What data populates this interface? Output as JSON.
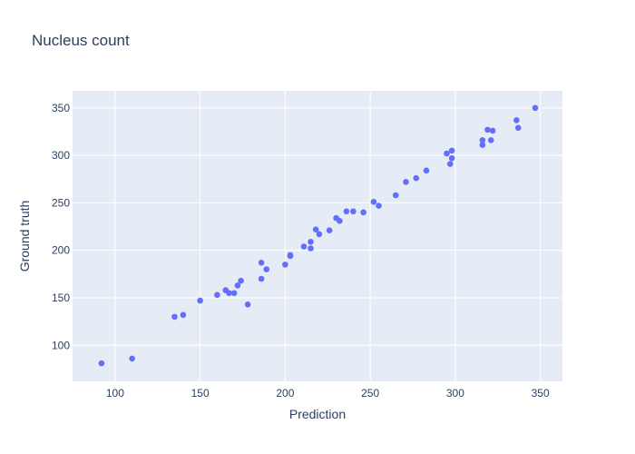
{
  "colors": {
    "plot_bg": "#e5ecf6",
    "grid": "#ffffff",
    "marker": "#636efa",
    "text": "#2a3f5f"
  },
  "chart_data": {
    "type": "scatter",
    "title": "Nucleus count",
    "xlabel": "Prediction",
    "ylabel": "Ground truth",
    "xlim": [
      75,
      363
    ],
    "ylim": [
      62,
      368
    ],
    "x_ticks": [
      100,
      150,
      200,
      250,
      300,
      350
    ],
    "y_ticks": [
      100,
      150,
      200,
      250,
      300,
      350
    ],
    "grid": true,
    "legend": false,
    "points": [
      {
        "x": 92,
        "y": 81
      },
      {
        "x": 110,
        "y": 86
      },
      {
        "x": 135,
        "y": 130
      },
      {
        "x": 140,
        "y": 132
      },
      {
        "x": 150,
        "y": 147
      },
      {
        "x": 160,
        "y": 153
      },
      {
        "x": 165,
        "y": 158
      },
      {
        "x": 167,
        "y": 155
      },
      {
        "x": 170,
        "y": 155
      },
      {
        "x": 172,
        "y": 163
      },
      {
        "x": 174,
        "y": 168
      },
      {
        "x": 178,
        "y": 143
      },
      {
        "x": 186,
        "y": 187
      },
      {
        "x": 186,
        "y": 170
      },
      {
        "x": 189,
        "y": 180
      },
      {
        "x": 200,
        "y": 185
      },
      {
        "x": 203,
        "y": 195
      },
      {
        "x": 203,
        "y": 194
      },
      {
        "x": 211,
        "y": 204
      },
      {
        "x": 215,
        "y": 209
      },
      {
        "x": 215,
        "y": 202
      },
      {
        "x": 218,
        "y": 222
      },
      {
        "x": 220,
        "y": 217
      },
      {
        "x": 226,
        "y": 221
      },
      {
        "x": 230,
        "y": 234
      },
      {
        "x": 232,
        "y": 231
      },
      {
        "x": 236,
        "y": 241
      },
      {
        "x": 240,
        "y": 241
      },
      {
        "x": 246,
        "y": 240
      },
      {
        "x": 252,
        "y": 251
      },
      {
        "x": 255,
        "y": 247
      },
      {
        "x": 265,
        "y": 258
      },
      {
        "x": 271,
        "y": 272
      },
      {
        "x": 277,
        "y": 276
      },
      {
        "x": 283,
        "y": 284
      },
      {
        "x": 295,
        "y": 302
      },
      {
        "x": 297,
        "y": 291
      },
      {
        "x": 298,
        "y": 297
      },
      {
        "x": 298,
        "y": 305
      },
      {
        "x": 316,
        "y": 311
      },
      {
        "x": 316,
        "y": 316
      },
      {
        "x": 319,
        "y": 327
      },
      {
        "x": 321,
        "y": 316
      },
      {
        "x": 322,
        "y": 326
      },
      {
        "x": 336,
        "y": 337
      },
      {
        "x": 337,
        "y": 329
      },
      {
        "x": 347,
        "y": 350
      }
    ]
  }
}
